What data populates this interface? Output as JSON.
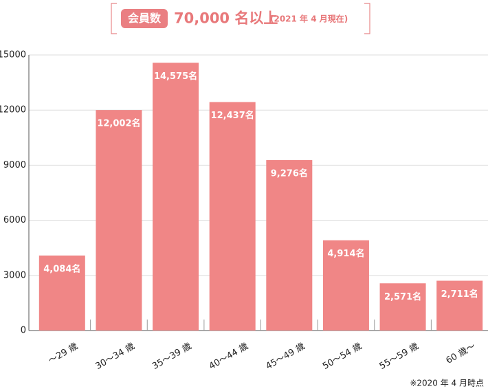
{
  "chart_data": {
    "type": "bar",
    "title_badge": "会員数",
    "title": "70,000 名以上",
    "subtitle": "(2021 年 4 月現在)",
    "footnote": "※2020 年 4 月時点",
    "categories": [
      "～29 歳",
      "30～34 歳",
      "35～39 歳",
      "40～44 歳",
      "45～49 歳",
      "50～54 歳",
      "55～59 歳",
      "60 歳～"
    ],
    "values": [
      4084,
      12002,
      14575,
      12437,
      9276,
      4914,
      2571,
      2711
    ],
    "value_labels": [
      "4,084名",
      "12,002名",
      "14,575名",
      "12,437名",
      "9,276名",
      "4,914名",
      "2,571名",
      "2,711名"
    ],
    "color": "#f08686",
    "ylim": [
      0,
      15000
    ],
    "yticks": [
      0,
      3000,
      6000,
      9000,
      12000,
      15000
    ],
    "grid": true
  }
}
